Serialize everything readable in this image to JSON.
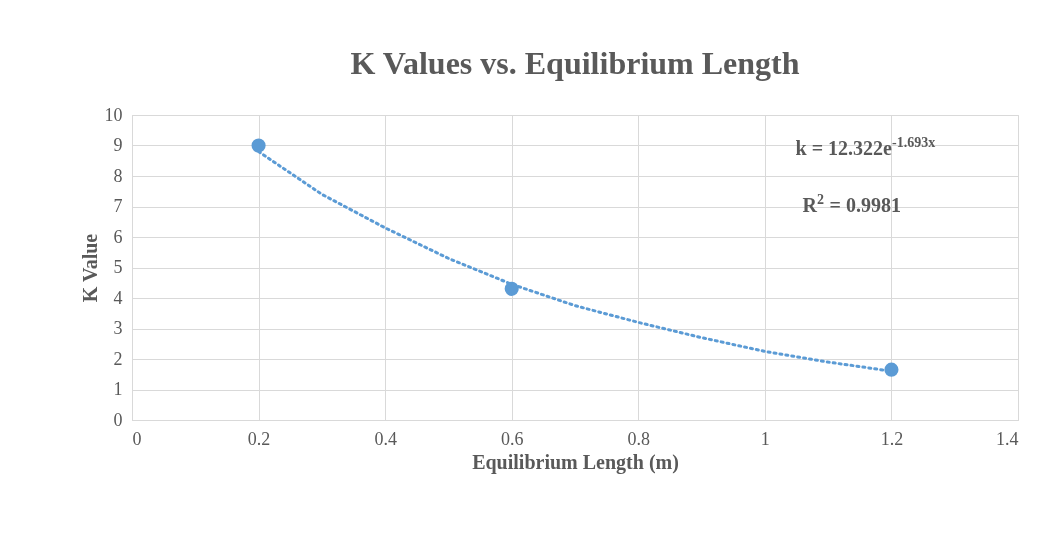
{
  "chart_data": {
    "type": "scatter",
    "title": "K Values vs. Equilibrium Length",
    "xlabel": "Equilibrium Length (m)",
    "ylabel": "K Value",
    "xlim": [
      0,
      1.4
    ],
    "xticks": [
      0,
      0.2,
      0.4,
      0.6,
      0.8,
      1,
      1.2,
      1.4
    ],
    "ylim": [
      0,
      10
    ],
    "yticks": [
      0,
      1,
      2,
      3,
      4,
      5,
      6,
      7,
      8,
      9,
      10
    ],
    "grid": true,
    "series": [
      {
        "color": "#5b9bd5",
        "marker": "circle",
        "x": [
          0.2,
          0.6,
          1.2
        ],
        "values": [
          9.0,
          4.3,
          1.65
        ]
      },
      {
        "type": "line",
        "color": "#5b9bd5",
        "line_style": "dotted",
        "x": [
          0.2,
          0.3,
          0.4,
          0.5,
          0.6,
          0.7,
          0.8,
          0.9,
          1.0,
          1.1,
          1.2
        ],
        "values": [
          8.8,
          7.4,
          6.3,
          5.3,
          4.45,
          3.75,
          3.2,
          2.7,
          2.25,
          1.9,
          1.6
        ]
      }
    ],
    "annotations": [
      "k = 12.322e$^{-1.693x}$",
      "R$^{2}$ = 0.9981"
    ]
  }
}
